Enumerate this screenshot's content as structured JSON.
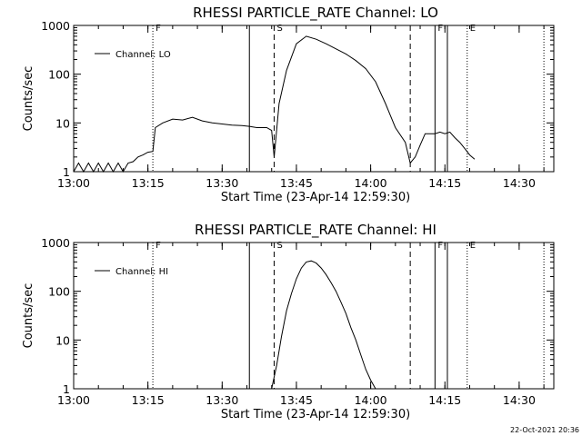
{
  "timestamp": "22-Oct-2021 20:36",
  "chart_data": [
    {
      "type": "line",
      "title": "RHESSI PARTICLE_RATE Channel: LO",
      "xlabel": "Start Time (23-Apr-14 12:59:30)",
      "ylabel": "Counts/sec",
      "y_scale": "log",
      "ylim": [
        1,
        1000
      ],
      "xlim": [
        "13:00",
        "14:37"
      ],
      "x_ticks": [
        "13:00",
        "13:15",
        "13:30",
        "13:45",
        "14:00",
        "14:15",
        "14:30"
      ],
      "y_ticks": [
        "1",
        "10",
        "100",
        "1000"
      ],
      "grid": false,
      "legend": {
        "position": "top-left",
        "entries": [
          "Channel: LO"
        ]
      },
      "flags": [
        {
          "label": "F",
          "time": "13:16",
          "style": "dotted"
        },
        {
          "label": "",
          "time": "13:35.5",
          "style": "solid"
        },
        {
          "label": "S",
          "time": "13:40.5",
          "style": "dashed"
        },
        {
          "label": "",
          "time": "14:08",
          "style": "dashed"
        },
        {
          "label": "F",
          "time": "14:13",
          "style": "solid"
        },
        {
          "label": "",
          "time": "14:15.5",
          "style": "solid"
        },
        {
          "label": "E",
          "time": "14:19.5",
          "style": "dotted"
        },
        {
          "label": "",
          "time": "14:35",
          "style": "dotted"
        }
      ],
      "series": [
        {
          "name": "Channel: LO",
          "x": [
            "13:00",
            "13:01",
            "13:02",
            "13:03",
            "13:04",
            "13:05",
            "13:06",
            "13:07",
            "13:08",
            "13:09",
            "13:10",
            "13:11",
            "13:12",
            "13:13",
            "13:14",
            "13:15",
            "13:16",
            "13:16.5",
            "13:18",
            "13:20",
            "13:22",
            "13:24",
            "13:26",
            "13:28",
            "13:30",
            "13:32",
            "13:34",
            "13:35.5",
            "13:37",
            "13:39",
            "13:40",
            "13:40.5",
            "13:41.5",
            "13:43",
            "13:45",
            "13:47",
            "13:49",
            "13:51",
            "13:53",
            "13:55",
            "13:57",
            "13:59",
            "14:01",
            "14:03",
            "14:05",
            "14:07",
            "14:08",
            "14:09",
            "14:10",
            "14:11",
            "14:12",
            "14:13",
            "14:14",
            "14:15",
            "14:16",
            "14:17",
            "14:18",
            "14:19",
            "14:20",
            "14:21"
          ],
          "y": [
            1,
            1.5,
            1,
            1.5,
            1,
            1.5,
            1,
            1.5,
            1,
            1.5,
            1,
            1.5,
            1.6,
            2,
            2.2,
            2.5,
            2.6,
            8,
            10,
            12,
            11.5,
            13,
            11,
            10,
            9.5,
            9,
            8.8,
            8.5,
            8,
            8,
            7,
            2,
            25,
            120,
            420,
            600,
            520,
            420,
            330,
            260,
            190,
            130,
            70,
            25,
            8,
            4,
            1.5,
            2,
            3.5,
            6,
            6,
            6,
            6.5,
            6,
            6.5,
            5,
            4,
            3,
            2.2,
            1.8
          ]
        }
      ]
    },
    {
      "type": "line",
      "title": "RHESSI PARTICLE_RATE Channel: HI",
      "xlabel": "Start Time (23-Apr-14 12:59:30)",
      "ylabel": "Counts/sec",
      "y_scale": "log",
      "ylim": [
        1,
        1000
      ],
      "xlim": [
        "13:00",
        "14:37"
      ],
      "x_ticks": [
        "13:00",
        "13:15",
        "13:30",
        "13:45",
        "14:00",
        "14:15",
        "14:30"
      ],
      "y_ticks": [
        "1",
        "10",
        "100",
        "1000"
      ],
      "grid": false,
      "legend": {
        "position": "top-left",
        "entries": [
          "Channel: HI"
        ]
      },
      "flags": [
        {
          "label": "F",
          "time": "13:16",
          "style": "dotted"
        },
        {
          "label": "",
          "time": "13:35.5",
          "style": "solid"
        },
        {
          "label": "S",
          "time": "13:40.5",
          "style": "dashed"
        },
        {
          "label": "",
          "time": "14:08",
          "style": "dashed"
        },
        {
          "label": "F",
          "time": "14:13",
          "style": "solid"
        },
        {
          "label": "",
          "time": "14:15.5",
          "style": "solid"
        },
        {
          "label": "E",
          "time": "14:19.5",
          "style": "dotted"
        },
        {
          "label": "",
          "time": "14:35",
          "style": "dotted"
        }
      ],
      "series": [
        {
          "name": "Channel: HI",
          "x": [
            "13:40",
            "13:41",
            "13:42",
            "13:43",
            "13:44",
            "13:45",
            "13:46",
            "13:47",
            "13:48",
            "13:49",
            "13:50",
            "13:51",
            "13:52",
            "13:53",
            "13:54",
            "13:55",
            "13:56",
            "13:57",
            "13:58",
            "13:59",
            "14:00",
            "14:01"
          ],
          "y": [
            1,
            3,
            12,
            40,
            90,
            180,
            300,
            400,
            420,
            380,
            300,
            220,
            150,
            100,
            60,
            35,
            18,
            10,
            5,
            2.5,
            1.5,
            1
          ]
        }
      ]
    }
  ]
}
